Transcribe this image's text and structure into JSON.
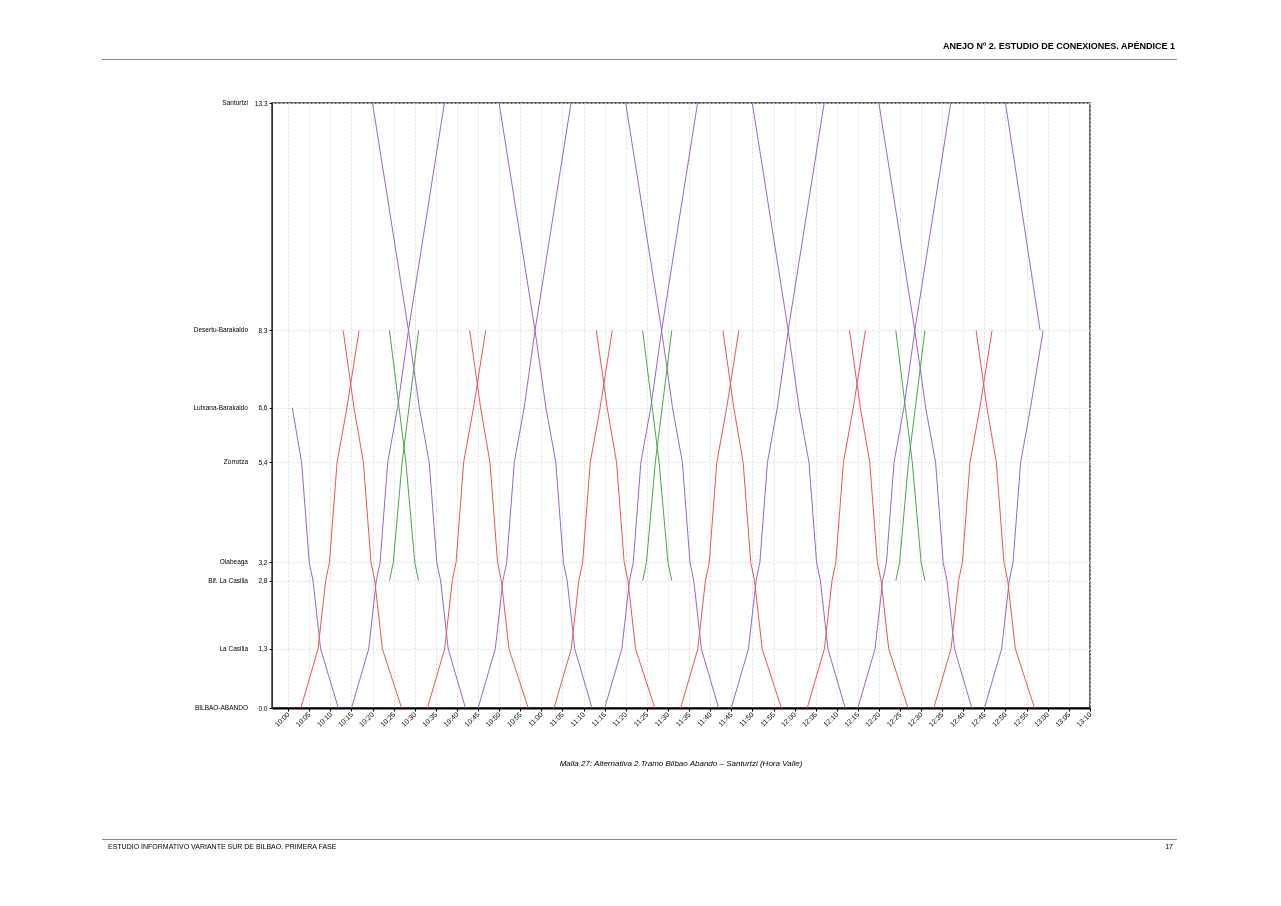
{
  "chart_data": {
    "type": "line",
    "title": "Malla 27: Alternativa 2.Tramo Bilbao Abando – Santurtzi (Hora Valle)",
    "annotations": [
      "ANEJO Nº 2. ESTUDIO DE CONEXIONES. APÉNDICE 1",
      "ESTUDIO INFORMATIVO VARIANTE SUR DE BILBAO. PRIMERA FASE",
      "17",
      "BILBAO-ABANDO",
      "La Casilla",
      "Bif. La Casilla",
      "Olabeaga",
      "Zorrotza",
      "Lutxana-Barakaldo",
      "Desertu-Barakaldo",
      "Santurtzi"
    ],
    "xlim": [
      9.936,
      13.167
    ],
    "ylim": [
      0,
      13.3
    ],
    "grid": true,
    "xticks": [
      {
        "value": 10,
        "label": "10:00"
      },
      {
        "value": 10.083,
        "label": "10:05"
      },
      {
        "value": 10.167,
        "label": "10:10"
      },
      {
        "value": 10.25,
        "label": "10:15"
      },
      {
        "value": 10.333,
        "label": "10:20"
      },
      {
        "value": 10.417,
        "label": "10:25"
      },
      {
        "value": 10.5,
        "label": "10:30"
      },
      {
        "value": 10.583,
        "label": "10:35"
      },
      {
        "value": 10.667,
        "label": "10:40"
      },
      {
        "value": 10.75,
        "label": "10:45"
      },
      {
        "value": 10.833,
        "label": "10:50"
      },
      {
        "value": 10.917,
        "label": "10:55"
      },
      {
        "value": 11,
        "label": "11:00"
      },
      {
        "value": 11.083,
        "label": "11:05"
      },
      {
        "value": 11.167,
        "label": "11:10"
      },
      {
        "value": 11.25,
        "label": "11:15"
      },
      {
        "value": 11.333,
        "label": "11:20"
      },
      {
        "value": 11.417,
        "label": "11:25"
      },
      {
        "value": 11.5,
        "label": "11:30"
      },
      {
        "value": 11.583,
        "label": "11:35"
      },
      {
        "value": 11.667,
        "label": "11:40"
      },
      {
        "value": 11.75,
        "label": "11:45"
      },
      {
        "value": 11.833,
        "label": "11:50"
      },
      {
        "value": 11.917,
        "label": "11:55"
      },
      {
        "value": 12,
        "label": "12:00"
      },
      {
        "value": 12.083,
        "label": "12:05"
      },
      {
        "value": 12.167,
        "label": "12:10"
      },
      {
        "value": 12.25,
        "label": "12:15"
      },
      {
        "value": 12.333,
        "label": "12:20"
      },
      {
        "value": 12.417,
        "label": "12:25"
      },
      {
        "value": 12.5,
        "label": "12:30"
      },
      {
        "value": 12.583,
        "label": "12:35"
      },
      {
        "value": 12.667,
        "label": "12:40"
      },
      {
        "value": 12.75,
        "label": "12:45"
      },
      {
        "value": 12.833,
        "label": "12:50"
      },
      {
        "value": 12.917,
        "label": "12:55"
      },
      {
        "value": 13,
        "label": "13:00"
      },
      {
        "value": 13.083,
        "label": "13:05"
      },
      {
        "value": 13.167,
        "label": "13:10"
      }
    ],
    "yticks": [
      {
        "value": 0,
        "label": "0.0"
      },
      {
        "value": 1.3,
        "label": "1,3"
      },
      {
        "value": 2.8,
        "label": "2,8"
      },
      {
        "value": 3.2,
        "label": "3,2"
      },
      {
        "value": 5.4,
        "label": "5,4"
      },
      {
        "value": 6.6,
        "label": "6,6"
      },
      8.3,
      13.3
    ],
    "series": [
      {
        "color": "#9966cc",
        "x": [
          10.016,
          10.053,
          10.083,
          10.098,
          10.128,
          10.198
        ],
        "values": [
          6.6,
          5.4,
          3.2,
          2.8,
          1.3,
          0
        ]
      },
      {
        "color": "#9966cc",
        "x": [
          10.333,
          10.475,
          10.518,
          10.557,
          10.587,
          10.602,
          10.632,
          10.7
        ],
        "values": [
          13.3,
          8.3,
          6.6,
          5.4,
          3.2,
          2.8,
          1.3,
          0
        ]
      },
      {
        "color": "#9966cc",
        "x": [
          10.833,
          10.975,
          11.018,
          11.057,
          11.087,
          11.102,
          11.132,
          11.2
        ],
        "values": [
          13.3,
          8.3,
          6.6,
          5.4,
          3.2,
          2.8,
          1.3,
          0
        ]
      },
      {
        "color": "#9966cc",
        "x": [
          11.333,
          11.475,
          11.518,
          11.557,
          11.587,
          11.602,
          11.632,
          11.7
        ],
        "values": [
          13.3,
          8.3,
          6.6,
          5.4,
          3.2,
          2.8,
          1.3,
          0
        ]
      },
      {
        "color": "#9966cc",
        "x": [
          11.833,
          11.975,
          12.018,
          12.057,
          12.087,
          12.102,
          12.132,
          12.2
        ],
        "values": [
          13.3,
          8.3,
          6.6,
          5.4,
          3.2,
          2.8,
          1.3,
          0
        ]
      },
      {
        "color": "#9966cc",
        "x": [
          12.333,
          12.475,
          12.518,
          12.557,
          12.587,
          12.602,
          12.632,
          12.7
        ],
        "values": [
          13.3,
          8.3,
          6.6,
          5.4,
          3.2,
          2.8,
          1.3,
          0
        ]
      },
      {
        "color": "#9966cc",
        "x": [
          12.833,
          12.97
        ],
        "values": [
          13.3,
          8.3
        ]
      },
      {
        "color": "#9966cc",
        "x": [
          10.25,
          10.318,
          10.348,
          10.363,
          10.393,
          10.432,
          10.475,
          10.617
        ],
        "values": [
          0,
          1.3,
          2.8,
          3.2,
          5.4,
          6.6,
          8.3,
          13.3
        ]
      },
      {
        "color": "#9966cc",
        "x": [
          10.75,
          10.818,
          10.848,
          10.863,
          10.893,
          10.932,
          10.975,
          11.117
        ],
        "values": [
          0,
          1.3,
          2.8,
          3.2,
          5.4,
          6.6,
          8.3,
          13.3
        ]
      },
      {
        "color": "#9966cc",
        "x": [
          11.25,
          11.318,
          11.348,
          11.363,
          11.393,
          11.432,
          11.475,
          11.617
        ],
        "values": [
          0,
          1.3,
          2.8,
          3.2,
          5.4,
          6.6,
          8.3,
          13.3
        ]
      },
      {
        "color": "#9966cc",
        "x": [
          11.75,
          11.818,
          11.848,
          11.863,
          11.893,
          11.932,
          11.975,
          12.117
        ],
        "values": [
          0,
          1.3,
          2.8,
          3.2,
          5.4,
          6.6,
          8.3,
          13.3
        ]
      },
      {
        "color": "#9966cc",
        "x": [
          12.25,
          12.318,
          12.348,
          12.363,
          12.393,
          12.432,
          12.475,
          12.617
        ],
        "values": [
          0,
          1.3,
          2.8,
          3.2,
          5.4,
          6.6,
          8.3,
          13.3
        ]
      },
      {
        "color": "#9966cc",
        "x": [
          12.75,
          12.818,
          12.848,
          12.863,
          12.893,
          12.932,
          12.982
        ],
        "values": [
          0,
          1.3,
          2.8,
          3.2,
          5.4,
          6.6,
          8.3
        ]
      },
      {
        "color": "#ee5555",
        "x": [
          10.05,
          10.118,
          10.148,
          10.163,
          10.193,
          10.232,
          10.28
        ],
        "values": [
          0,
          1.3,
          2.8,
          3.2,
          5.4,
          6.6,
          8.3
        ]
      },
      {
        "color": "#ee5555",
        "x": [
          10.55,
          10.618,
          10.648,
          10.663,
          10.693,
          10.732,
          10.78
        ],
        "values": [
          0,
          1.3,
          2.8,
          3.2,
          5.4,
          6.6,
          8.3
        ]
      },
      {
        "color": "#ee5555",
        "x": [
          11.05,
          11.118,
          11.148,
          11.163,
          11.193,
          11.232,
          11.28
        ],
        "values": [
          0,
          1.3,
          2.8,
          3.2,
          5.4,
          6.6,
          8.3
        ]
      },
      {
        "color": "#ee5555",
        "x": [
          11.55,
          11.618,
          11.648,
          11.663,
          11.693,
          11.732,
          11.78
        ],
        "values": [
          0,
          1.3,
          2.8,
          3.2,
          5.4,
          6.6,
          8.3
        ]
      },
      {
        "color": "#ee5555",
        "x": [
          12.05,
          12.118,
          12.148,
          12.163,
          12.193,
          12.232,
          12.28
        ],
        "values": [
          0,
          1.3,
          2.8,
          3.2,
          5.4,
          6.6,
          8.3
        ]
      },
      {
        "color": "#ee5555",
        "x": [
          12.55,
          12.618,
          12.648,
          12.663,
          12.693,
          12.732,
          12.78
        ],
        "values": [
          0,
          1.3,
          2.8,
          3.2,
          5.4,
          6.6,
          8.3
        ]
      },
      {
        "color": "#ee5555",
        "x": [
          10.217,
          10.26,
          10.297,
          10.327,
          10.342,
          10.372,
          10.448
        ],
        "values": [
          8.3,
          6.6,
          5.4,
          3.2,
          2.8,
          1.3,
          0
        ]
      },
      {
        "color": "#ee5555",
        "x": [
          10.717,
          10.76,
          10.797,
          10.827,
          10.842,
          10.872,
          10.948
        ],
        "values": [
          8.3,
          6.6,
          5.4,
          3.2,
          2.8,
          1.3,
          0
        ]
      },
      {
        "color": "#ee5555",
        "x": [
          11.217,
          11.26,
          11.297,
          11.327,
          11.342,
          11.372,
          11.448
        ],
        "values": [
          8.3,
          6.6,
          5.4,
          3.2,
          2.8,
          1.3,
          0
        ]
      },
      {
        "color": "#ee5555",
        "x": [
          11.717,
          11.76,
          11.797,
          11.827,
          11.842,
          11.872,
          11.948
        ],
        "values": [
          8.3,
          6.6,
          5.4,
          3.2,
          2.8,
          1.3,
          0
        ]
      },
      {
        "color": "#ee5555",
        "x": [
          12.217,
          12.26,
          12.297,
          12.327,
          12.342,
          12.372,
          12.448
        ],
        "values": [
          8.3,
          6.6,
          5.4,
          3.2,
          2.8,
          1.3,
          0
        ]
      },
      {
        "color": "#ee5555",
        "x": [
          12.717,
          12.76,
          12.797,
          12.827,
          12.842,
          12.872,
          12.948
        ],
        "values": [
          8.3,
          6.6,
          5.4,
          3.2,
          2.8,
          1.3,
          0
        ]
      },
      {
        "color": "#44aa44",
        "x": [
          10.4,
          10.415,
          10.45,
          10.477,
          10.515
        ],
        "values": [
          2.8,
          3.2,
          5.4,
          6.6,
          8.3
        ]
      },
      {
        "color": "#44aa44",
        "x": [
          11.4,
          11.415,
          11.45,
          11.477,
          11.515
        ],
        "values": [
          2.8,
          3.2,
          5.4,
          6.6,
          8.3
        ]
      },
      {
        "color": "#44aa44",
        "x": [
          12.4,
          12.415,
          12.45,
          12.477,
          12.515
        ],
        "values": [
          2.8,
          3.2,
          5.4,
          6.6,
          8.3
        ]
      },
      {
        "color": "#44aa44",
        "x": [
          10.4,
          10.438,
          10.465,
          10.5,
          10.515
        ],
        "values": [
          8.3,
          6.6,
          5.4,
          3.2,
          2.8
        ]
      },
      {
        "color": "#44aa44",
        "x": [
          11.4,
          11.438,
          11.465,
          11.5,
          11.515
        ],
        "values": [
          8.3,
          6.6,
          5.4,
          3.2,
          2.8
        ]
      },
      {
        "color": "#44aa44",
        "x": [
          12.4,
          12.438,
          12.465,
          12.5,
          12.515
        ],
        "values": [
          8.3,
          6.6,
          5.4,
          3.2,
          2.8
        ]
      }
    ]
  }
}
